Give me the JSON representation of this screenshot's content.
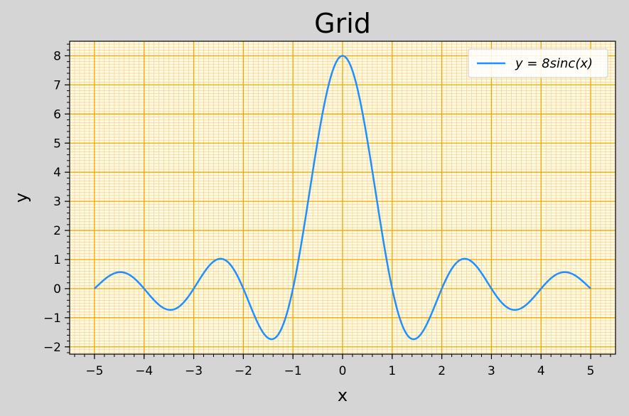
{
  "chart_data": {
    "type": "line",
    "title": "Grid",
    "xlabel": "x",
    "ylabel": "y",
    "xlim": [
      -5.5,
      5.5
    ],
    "ylim": [
      -2.25,
      8.5
    ],
    "x_ticks": [
      -5,
      -4,
      -3,
      -2,
      -1,
      0,
      1,
      2,
      3,
      4,
      5
    ],
    "x_tick_labels": [
      "−5",
      "−4",
      "−3",
      "−2",
      "−1",
      "0",
      "1",
      "2",
      "3",
      "4",
      "5"
    ],
    "y_ticks": [
      -2,
      -1,
      0,
      1,
      2,
      3,
      4,
      5,
      6,
      7,
      8
    ],
    "y_tick_labels": [
      "−2",
      "−1",
      "0",
      "1",
      "2",
      "3",
      "4",
      "5",
      "6",
      "7",
      "8"
    ],
    "grid": true,
    "minor_grid": true,
    "legend_position": "top-right",
    "series": [
      {
        "name": "y = 8sinc(x)",
        "color": "#1e90ff",
        "x": [
          -5,
          -4.5,
          -4,
          -3.5,
          -3,
          -2.5,
          -2,
          -1.5,
          -1,
          -0.5,
          0,
          0.5,
          1,
          1.5,
          2,
          2.5,
          3,
          3.5,
          4,
          4.5,
          5
        ],
        "y": [
          0,
          0.566,
          0,
          -0.728,
          0,
          1.019,
          0,
          -1.698,
          0,
          5.093,
          8,
          5.093,
          0,
          -1.698,
          0,
          1.019,
          0,
          -0.728,
          0,
          0.566,
          0
        ]
      }
    ],
    "colors": {
      "background": "#d5d5d5",
      "plot_bg": "#fffbe0",
      "grid_major": "#f5a500",
      "grid_minor": "#f7c98a"
    }
  }
}
